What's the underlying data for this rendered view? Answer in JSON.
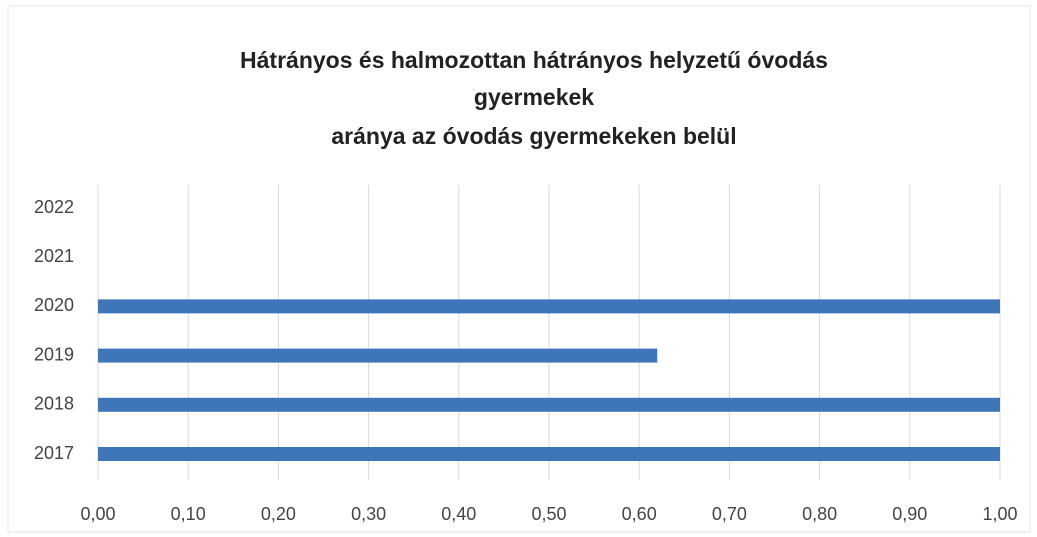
{
  "chart_data": {
    "type": "barh",
    "title": [
      "Hátrányos és halmozottan hátrányos helyzetű óvodás",
      "gyermekek",
      "aránya az óvodás gyermekeken belül"
    ],
    "categories": [
      "2022",
      "2021",
      "2020",
      "2019",
      "2018",
      "2017"
    ],
    "values": [
      null,
      null,
      1.0,
      0.62,
      1.0,
      1.0
    ],
    "color": "#3f76b9",
    "xlim": [
      0,
      1
    ],
    "xticks": [
      {
        "value": 0,
        "label": "0,00"
      },
      {
        "value": 0.1,
        "label": "0,10"
      },
      {
        "value": 0.2,
        "label": "0,20"
      },
      {
        "value": 0.3,
        "label": "0,30"
      },
      {
        "value": 0.4,
        "label": "0,40"
      },
      {
        "value": 0.5,
        "label": "0,50"
      },
      {
        "value": 0.6,
        "label": "0,60"
      },
      {
        "value": 0.7,
        "label": "0,70"
      },
      {
        "value": 0.8,
        "label": "0,80"
      },
      {
        "value": 0.9,
        "label": "0,90"
      },
      {
        "value": 1,
        "label": "1,00"
      }
    ],
    "grid": true
  }
}
